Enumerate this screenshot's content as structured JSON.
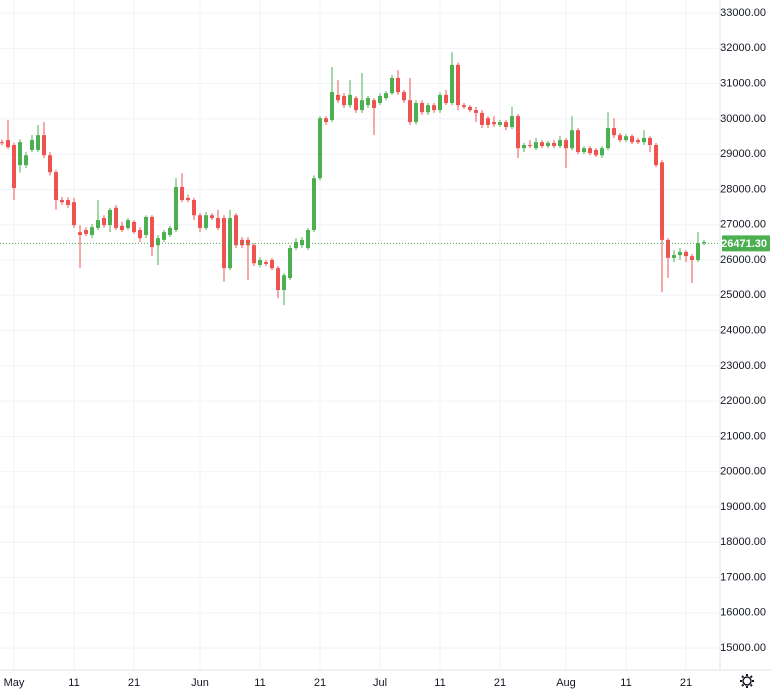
{
  "chart_data": {
    "type": "candlestick",
    "x": [
      "04-29",
      "04-30",
      "05-01",
      "05-02",
      "05-03",
      "05-04",
      "05-05",
      "05-06",
      "05-07",
      "05-08",
      "05-09",
      "05-10",
      "05-11",
      "05-12",
      "05-13",
      "05-14",
      "05-15",
      "05-16",
      "05-17",
      "05-18",
      "05-19",
      "05-20",
      "05-21",
      "05-22",
      "05-23",
      "05-24",
      "05-25",
      "05-26",
      "05-27",
      "05-28",
      "05-29",
      "05-30",
      "05-31",
      "06-01",
      "06-02",
      "06-03",
      "06-04",
      "06-05",
      "06-06",
      "06-07",
      "06-08",
      "06-09",
      "06-10",
      "06-11",
      "06-12",
      "06-13",
      "06-14",
      "06-15",
      "06-16",
      "06-17",
      "06-18",
      "06-19",
      "06-20",
      "06-21",
      "06-22",
      "06-23",
      "06-24",
      "06-25",
      "06-26",
      "06-27",
      "06-28",
      "06-29",
      "06-30",
      "07-01",
      "07-02",
      "07-03",
      "07-04",
      "07-05",
      "07-06",
      "07-07",
      "07-08",
      "07-09",
      "07-10",
      "07-11",
      "07-12",
      "07-13",
      "07-14",
      "07-15",
      "07-16",
      "07-17",
      "07-18",
      "07-19",
      "07-20",
      "07-21",
      "07-22",
      "07-23",
      "07-24",
      "07-25",
      "07-26",
      "07-27",
      "07-28",
      "07-29",
      "07-30",
      "07-31",
      "08-01",
      "08-02",
      "08-03",
      "08-04",
      "08-05",
      "08-06",
      "08-07",
      "08-08",
      "08-09",
      "08-10",
      "08-11",
      "08-12",
      "08-13",
      "08-14",
      "08-15",
      "08-16",
      "08-17",
      "08-18",
      "08-19",
      "08-20",
      "08-21",
      "08-22",
      "08-23",
      "08-24"
    ],
    "open": [
      29340,
      29400,
      29260,
      28690,
      28690,
      29120,
      29120,
      29540,
      28970,
      28490,
      27700,
      27700,
      27640,
      26790,
      26850,
      26710,
      26910,
      27190,
      26990,
      27480,
      26970,
      26910,
      27080,
      26850,
      26710,
      27220,
      26420,
      26570,
      26710,
      26850,
      28070,
      27760,
      27700,
      27270,
      26910,
      27270,
      27190,
      27190,
      25770,
      27270,
      26570,
      26570,
      26420,
      25860,
      25940,
      26000,
      25770,
      25150,
      25490,
      26340,
      26420,
      26340,
      26850,
      28320,
      30020,
      29970,
      30680,
      30650,
      30390,
      30590,
      30250,
      30390,
      30530,
      30450,
      30590,
      30730,
      31160,
      30760,
      30530,
      29910,
      30450,
      30190,
      30390,
      30250,
      30680,
      30450,
      31530,
      30390,
      30340,
      30250,
      30170,
      30020,
      29910,
      29830,
      29910,
      29770,
      30080,
      29170,
      29260,
      29170,
      29340,
      29230,
      29320,
      29230,
      29400,
      29170,
      29680,
      29060,
      29170,
      29120,
      28970,
      29170,
      29740,
      29540,
      29400,
      29510,
      29400,
      29340,
      29460,
      29260,
      28770,
      26570,
      26060,
      26140,
      26230,
      26110,
      26000,
      26480
    ],
    "high": [
      29420,
      29960,
      29320,
      29420,
      29060,
      29540,
      29830,
      29910,
      29060,
      28560,
      27790,
      27780,
      27760,
      26990,
      26930,
      27020,
      27700,
      27270,
      27480,
      27560,
      27080,
      27190,
      27130,
      26930,
      27270,
      27270,
      26710,
      26850,
      26970,
      28320,
      28460,
      27850,
      27760,
      27330,
      27360,
      27330,
      27420,
      27270,
      27420,
      27330,
      26650,
      26650,
      26480,
      26080,
      26000,
      26060,
      25830,
      25630,
      26420,
      26620,
      26650,
      26910,
      28400,
      30080,
      30080,
      31470,
      31100,
      30730,
      31100,
      30650,
      31300,
      30650,
      30590,
      30730,
      30790,
      31240,
      31380,
      30820,
      31160,
      30530,
      30530,
      30450,
      30450,
      30760,
      30820,
      31890,
      31600,
      30450,
      30390,
      30340,
      30250,
      30080,
      30080,
      29970,
      29970,
      30340,
      30140,
      29320,
      29400,
      29460,
      29400,
      29370,
      29400,
      29510,
      29460,
      30080,
      29740,
      29230,
      29230,
      29170,
      29230,
      30190,
      30020,
      29600,
      29570,
      29570,
      29460,
      29680,
      29510,
      29320,
      28830,
      26620,
      26280,
      26340,
      26280,
      26170,
      26790,
      26570
    ],
    "low": [
      29250,
      29140,
      27700,
      28480,
      28610,
      29060,
      29060,
      28890,
      28400,
      27420,
      27560,
      27480,
      26910,
      25770,
      26680,
      26620,
      26850,
      26910,
      26790,
      26850,
      26790,
      26850,
      26740,
      26510,
      26620,
      26110,
      25860,
      26510,
      26650,
      26790,
      27640,
      27640,
      27130,
      26790,
      26850,
      27130,
      26850,
      25380,
      25710,
      26340,
      26340,
      25430,
      25830,
      25800,
      25830,
      25710,
      24920,
      24720,
      25430,
      26280,
      26340,
      26280,
      26790,
      28260,
      29830,
      29910,
      30450,
      30310,
      30310,
      30170,
      30170,
      30310,
      29540,
      30390,
      30530,
      30680,
      30680,
      30450,
      29830,
      29850,
      30110,
      30110,
      30170,
      30170,
      30390,
      30390,
      30250,
      30280,
      30190,
      29910,
      29740,
      29740,
      29770,
      29770,
      29680,
      29710,
      28890,
      29060,
      29170,
      29110,
      29170,
      29170,
      29170,
      29170,
      28610,
      29110,
      29000,
      29000,
      28970,
      28920,
      28890,
      29110,
      29460,
      29340,
      29340,
      29290,
      29290,
      29260,
      29060,
      28630,
      25090,
      25490,
      25940,
      26000,
      25940,
      25350,
      25940,
      26420
    ],
    "close": [
      29320,
      29200,
      28040,
      29340,
      28970,
      29400,
      29540,
      28970,
      28490,
      27700,
      27640,
      27560,
      26990,
      26710,
      26740,
      26930,
      27130,
      26990,
      27420,
      26910,
      26850,
      27130,
      26790,
      26620,
      27220,
      26370,
      26620,
      26790,
      26910,
      28070,
      27700,
      27700,
      27270,
      26910,
      27270,
      27190,
      26910,
      25770,
      27190,
      26420,
      26420,
      26420,
      25910,
      26000,
      25890,
      25770,
      25150,
      25570,
      26340,
      26510,
      26570,
      26850,
      28320,
      30020,
      29910,
      30760,
      30530,
      30390,
      30680,
      30250,
      30530,
      30590,
      30310,
      30650,
      30730,
      31160,
      30760,
      30530,
      29910,
      30450,
      30190,
      30390,
      30250,
      30680,
      30450,
      31530,
      30390,
      30340,
      30250,
      30170,
      29830,
      29830,
      29850,
      29910,
      29770,
      30080,
      29170,
      29260,
      29230,
      29340,
      29230,
      29320,
      29230,
      29400,
      29170,
      29680,
      29060,
      29170,
      29030,
      28970,
      29170,
      29740,
      29540,
      29400,
      29510,
      29340,
      29340,
      29460,
      29260,
      28690,
      26570,
      26060,
      26140,
      26230,
      26110,
      26000,
      26480,
      26510
    ],
    "up_color": "#4caf50",
    "down_color": "#ef5350",
    "last_price": {
      "value": 26471.3,
      "label": "26471.30"
    },
    "ylim": [
      14380,
      33370
    ],
    "yticks": [
      {
        "value": 33000,
        "label": "33000.00"
      },
      {
        "value": 32000,
        "label": "32000.00"
      },
      {
        "value": 31000,
        "label": "31000.00"
      },
      {
        "value": 30000,
        "label": "30000.00"
      },
      {
        "value": 29000,
        "label": "29000.00"
      },
      {
        "value": 28000,
        "label": "28000.00"
      },
      {
        "value": 27000,
        "label": "27000.00"
      },
      {
        "value": 26000,
        "label": "26000.00"
      },
      {
        "value": 25000,
        "label": "25000.00"
      },
      {
        "value": 24000,
        "label": "24000.00"
      },
      {
        "value": 23000,
        "label": "23000.00"
      },
      {
        "value": 22000,
        "label": "22000.00"
      },
      {
        "value": 21000,
        "label": "21000.00"
      },
      {
        "value": 20000,
        "label": "20000.00"
      },
      {
        "value": 19000,
        "label": "19000.00"
      },
      {
        "value": 18000,
        "label": "18000.00"
      },
      {
        "value": 17000,
        "label": "17000.00"
      },
      {
        "value": 16000,
        "label": "16000.00"
      },
      {
        "value": 15000,
        "label": "15000.00"
      }
    ],
    "xticks": [
      {
        "value": "05-01",
        "label": "May"
      },
      {
        "value": "05-11",
        "label": "11"
      },
      {
        "value": "05-21",
        "label": "21"
      },
      {
        "value": "06-01",
        "label": "Jun"
      },
      {
        "value": "06-11",
        "label": "11"
      },
      {
        "value": "06-21",
        "label": "21"
      },
      {
        "value": "07-01",
        "label": "Jul"
      },
      {
        "value": "07-11",
        "label": "11"
      },
      {
        "value": "07-21",
        "label": "21"
      },
      {
        "value": "08-01",
        "label": "Aug"
      },
      {
        "value": "08-11",
        "label": "11"
      },
      {
        "value": "08-21",
        "label": "21"
      }
    ],
    "grid": true
  }
}
